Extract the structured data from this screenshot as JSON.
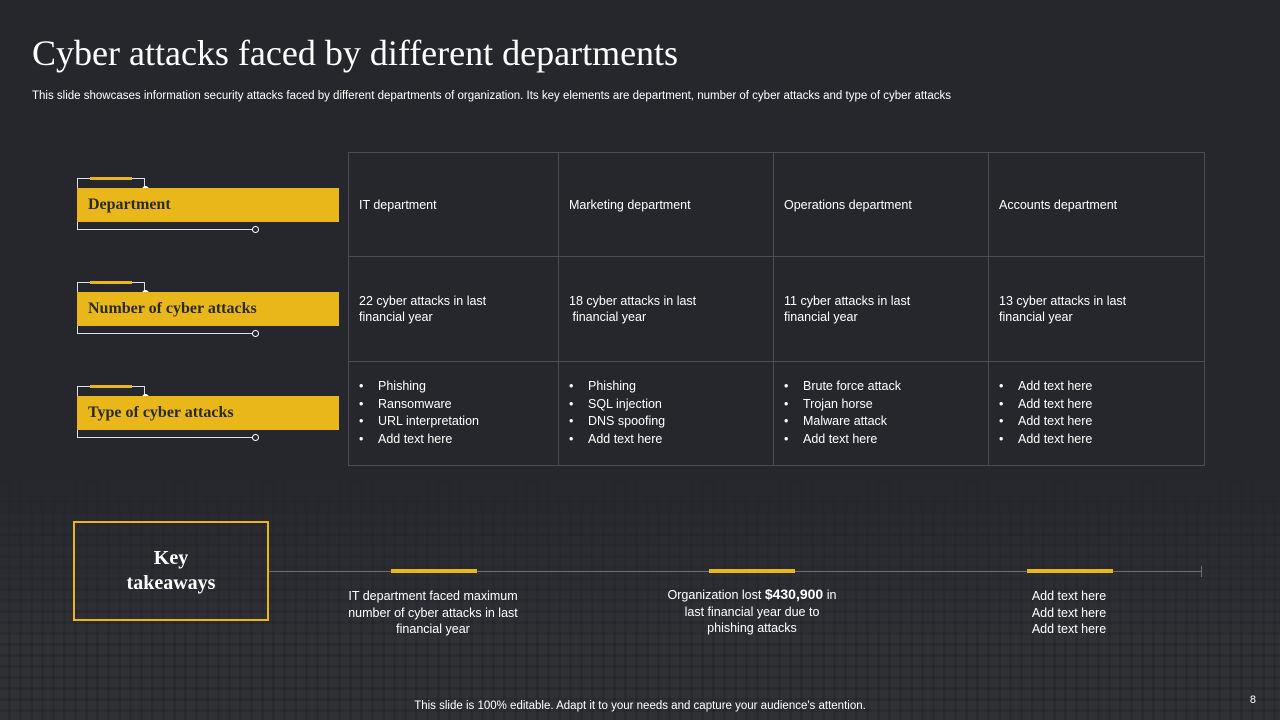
{
  "title": "Cyber attacks faced by different departments",
  "subtitle": "This slide showcases information security attacks faced by different departments of organization. Its key elements are department, number of cyber attacks and type of cyber attacks",
  "row_labels": [
    "Department",
    "Number of cyber attacks",
    "Type of cyber attacks"
  ],
  "table": {
    "departments": [
      "IT department",
      "Marketing department",
      "Operations department",
      "Accounts department"
    ],
    "counts": [
      [
        "22 cyber attacks in last",
        "financial year"
      ],
      [
        "18 cyber attacks in last",
        " financial year"
      ],
      [
        "11 cyber attacks in last",
        "financial year"
      ],
      [
        "13 cyber attacks in last",
        "financial year"
      ]
    ],
    "types": [
      [
        "Phishing",
        "Ransomware",
        "URL interpretation",
        "Add text here"
      ],
      [
        "Phishing",
        "SQL injection",
        "DNS spoofing",
        "Add text here"
      ],
      [
        "Brute force attack",
        "Trojan horse",
        "Malware attack",
        "Add text here"
      ],
      [
        "Add text here",
        "Add text here",
        "Add text here",
        "Add text here"
      ]
    ]
  },
  "key_takeaways": {
    "label_line1": "Key",
    "label_line2": "takeaways",
    "item1": [
      "IT department faced maximum",
      "number of cyber attacks in last",
      "financial year"
    ],
    "item2_pre": "Organization lost ",
    "item2_amount": "$430,900",
    "item2_post": " in",
    "item2_lines": [
      "last financial year due to",
      "phishing attacks"
    ],
    "item3": [
      "Add text here",
      "Add text here",
      "Add text here"
    ]
  },
  "footer": "This slide is 100% editable. Adapt it to your needs and capture your audience's attention.",
  "page_number": "8",
  "colors": {
    "accent": "#e9b719",
    "background": "#25272c",
    "grid": "#4a4d55"
  }
}
